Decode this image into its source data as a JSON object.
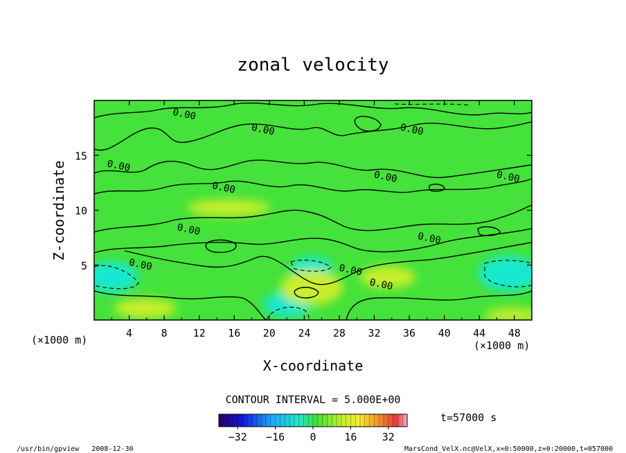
{
  "chart_data": {
    "type": "heatmap",
    "title": "zonal velocity",
    "xlabel": "X-coordinate",
    "ylabel": "Z-coordinate",
    "x_unit": "(×1000 m)",
    "x_unit_right": "(×1000 m)",
    "xlim": [
      0,
      50
    ],
    "ylim": [
      0,
      20
    ],
    "x_ticks": [
      4,
      8,
      12,
      16,
      20,
      24,
      28,
      32,
      36,
      40,
      44,
      48
    ],
    "y_ticks": [
      5,
      10,
      15
    ],
    "contour_interval_text": "CONTOUR INTERVAL = 5.000E+00",
    "time_text": "t=57000 s",
    "colorbar": {
      "range": [
        -40,
        40
      ],
      "ticks": [
        -32,
        -16,
        0,
        16,
        32
      ]
    },
    "contour_labels": [
      {
        "text": "0.00",
        "x": 9,
        "y": 19.0
      },
      {
        "text": "0.00",
        "x": 18,
        "y": 17.6
      },
      {
        "text": "0.00",
        "x": 35,
        "y": 17.6
      },
      {
        "text": "0.00",
        "x": 1.5,
        "y": 14.3
      },
      {
        "text": "0.00",
        "x": 32,
        "y": 13.3
      },
      {
        "text": "0.00",
        "x": 46,
        "y": 13.3
      },
      {
        "text": "0.00",
        "x": 13.5,
        "y": 12.3
      },
      {
        "text": "0.00",
        "x": 9.5,
        "y": 8.5
      },
      {
        "text": "0.00",
        "x": 37,
        "y": 7.7
      },
      {
        "text": "0.00",
        "x": 4,
        "y": 5.3
      },
      {
        "text": "0.00",
        "x": 28,
        "y": 4.8
      },
      {
        "text": "0.00",
        "x": 31.5,
        "y": 3.5
      }
    ],
    "colors": {
      "field_base": "#44e23a",
      "negative": "#19e8d0",
      "positive": "#c9ef2a",
      "contour": "#000000"
    }
  },
  "footer": {
    "left": "/usr/bin/gpview   2008-12-30",
    "right": "MarsCond_VelX.nc@VelX,x=0:50000,z=0:20000,t=057000"
  }
}
